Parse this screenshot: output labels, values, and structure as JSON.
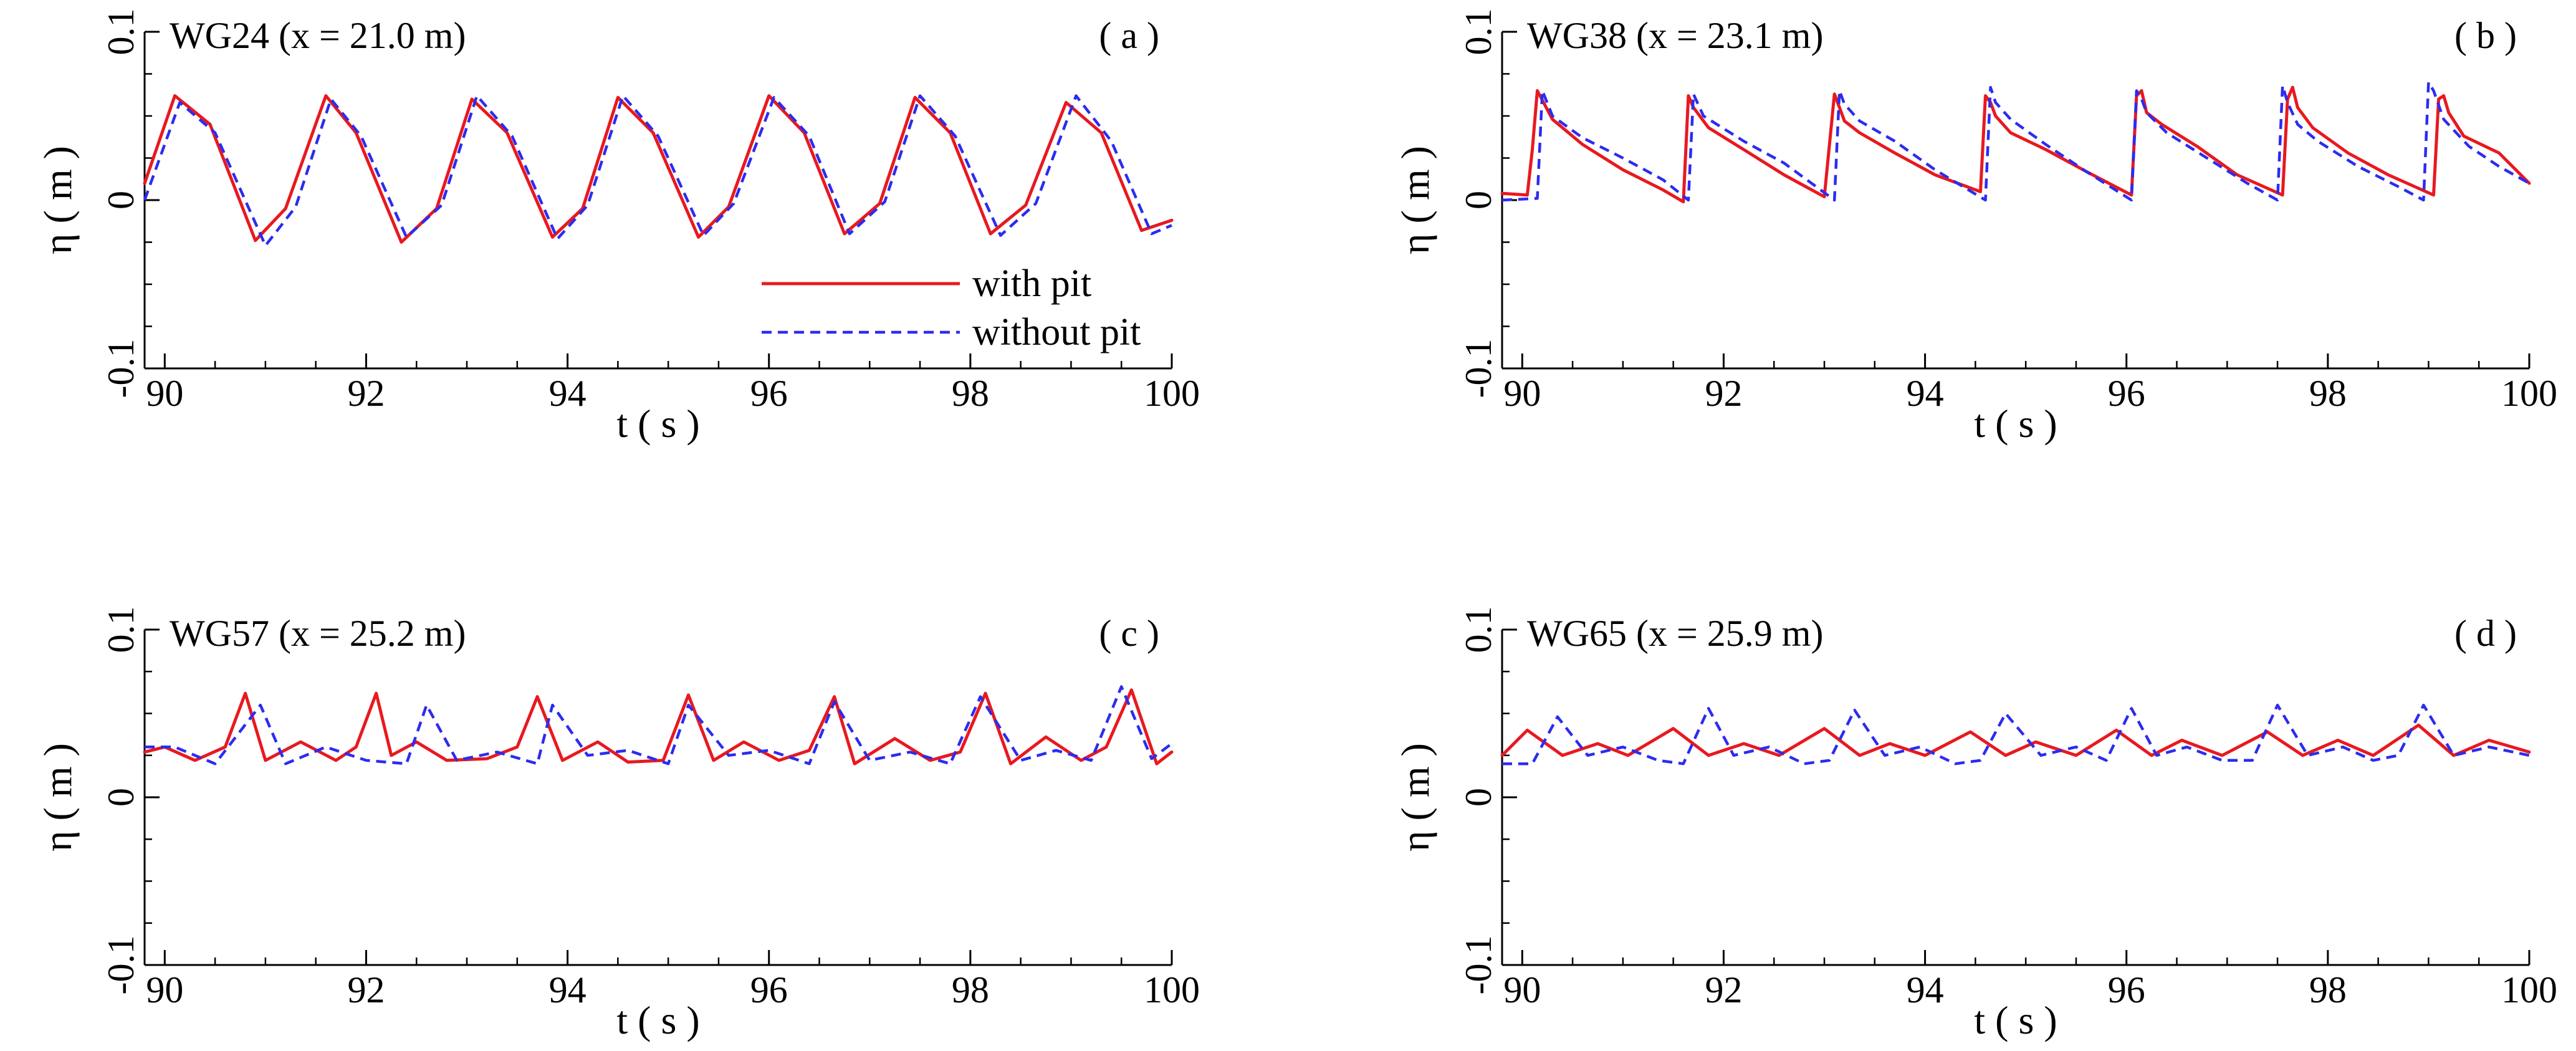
{
  "chart_data": [
    {
      "type": "line",
      "panel_label": "( a )",
      "title": "WG24 (x = 21.0 m)",
      "xlabel": "t ( s )",
      "ylabel": "η ( m )",
      "xlim": [
        89.8,
        100
      ],
      "ylim": [
        -0.1,
        0.1
      ],
      "xticks": [
        90,
        92,
        94,
        96,
        98,
        100
      ],
      "xtick_labels": [
        "90",
        "92",
        "94",
        "96",
        "98",
        "100"
      ],
      "yticks": [
        -0.1,
        0,
        0.1
      ],
      "ytick_labels": [
        "-0.1",
        "0",
        "0.1"
      ],
      "legend": {
        "entries": [
          "with pit",
          "without pit"
        ],
        "placement": "lower-right"
      },
      "series": [
        {
          "name": "with pit",
          "color": "#e8191f",
          "dash": "solid",
          "x": [
            89.8,
            90.1,
            90.45,
            90.9,
            91.2,
            91.6,
            91.9,
            92.35,
            92.7,
            93.05,
            93.4,
            93.85,
            94.15,
            94.5,
            94.85,
            95.3,
            95.6,
            96,
            96.35,
            96.75,
            97.1,
            97.45,
            97.8,
            98.2,
            98.55,
            98.95,
            99.3,
            99.7,
            100
          ],
          "y": [
            0.01,
            0.062,
            0.045,
            -0.024,
            -0.005,
            0.062,
            0.04,
            -0.025,
            -0.005,
            0.06,
            0.04,
            -0.022,
            -0.005,
            0.061,
            0.04,
            -0.022,
            -0.004,
            0.062,
            0.04,
            -0.02,
            -0.002,
            0.061,
            0.04,
            -0.02,
            -0.003,
            0.058,
            0.04,
            -0.018,
            -0.012
          ]
        },
        {
          "name": "without pit",
          "color": "#2c2cf0",
          "dash": "dashed",
          "x": [
            89.8,
            90.15,
            90.5,
            91,
            91.3,
            91.65,
            91.95,
            92.4,
            92.75,
            93.1,
            93.45,
            93.9,
            94.2,
            94.55,
            94.9,
            95.35,
            95.65,
            96.05,
            96.4,
            96.8,
            97.15,
            97.5,
            97.85,
            98.3,
            98.65,
            99.05,
            99.4,
            99.8,
            100
          ],
          "y": [
            0.0,
            0.058,
            0.04,
            -0.027,
            -0.004,
            0.06,
            0.038,
            -0.022,
            -0.003,
            0.062,
            0.038,
            -0.023,
            -0.003,
            0.062,
            0.038,
            -0.021,
            -0.002,
            0.061,
            0.038,
            -0.02,
            -0.001,
            0.062,
            0.038,
            -0.021,
            -0.002,
            0.062,
            0.035,
            -0.02,
            -0.015
          ]
        }
      ]
    },
    {
      "type": "line",
      "panel_label": "( b )",
      "title": "WG38 (x = 23.1 m)",
      "xlabel": "t ( s )",
      "ylabel": "η ( m )",
      "xlim": [
        89.8,
        100
      ],
      "ylim": [
        -0.1,
        0.1
      ],
      "xticks": [
        90,
        92,
        94,
        96,
        98,
        100
      ],
      "xtick_labels": [
        "90",
        "92",
        "94",
        "96",
        "98",
        "100"
      ],
      "yticks": [
        -0.1,
        0,
        0.1
      ],
      "ytick_labels": [
        "-0.1",
        "0",
        "0.1"
      ],
      "series": [
        {
          "name": "with pit",
          "color": "#e8191f",
          "dash": "solid",
          "x": [
            89.8,
            90.05,
            90.1,
            90.15,
            90.3,
            90.6,
            91,
            91.4,
            91.6,
            91.65,
            91.7,
            91.85,
            92.2,
            92.6,
            93,
            93.1,
            93.15,
            93.2,
            93.35,
            93.7,
            94.1,
            94.55,
            94.6,
            94.65,
            94.7,
            94.85,
            95.2,
            95.6,
            96.05,
            96.1,
            96.15,
            96.2,
            96.35,
            96.7,
            97.1,
            97.55,
            97.6,
            97.65,
            97.7,
            97.85,
            98.2,
            98.6,
            99.05,
            99.1,
            99.15,
            99.2,
            99.35,
            99.7,
            100
          ],
          "y": [
            0.004,
            0.003,
            0.03,
            0.065,
            0.048,
            0.033,
            0.018,
            0.006,
            -0.001,
            0.062,
            0.055,
            0.043,
            0.03,
            0.015,
            0.002,
            0.063,
            0.055,
            0.047,
            0.04,
            0.028,
            0.015,
            0.005,
            0.062,
            0.058,
            0.05,
            0.04,
            0.03,
            0.017,
            0.003,
            0.062,
            0.065,
            0.052,
            0.045,
            0.032,
            0.015,
            0.003,
            0.06,
            0.067,
            0.055,
            0.043,
            0.028,
            0.015,
            0.003,
            0.06,
            0.062,
            0.052,
            0.038,
            0.028,
            0.01
          ]
        },
        {
          "name": "without pit",
          "color": "#2c2cf0",
          "dash": "dashed",
          "x": [
            89.8,
            90.15,
            90.2,
            90.3,
            90.6,
            91,
            91.4,
            91.65,
            91.7,
            91.8,
            92.2,
            92.6,
            93.1,
            93.15,
            93.2,
            93.35,
            93.7,
            94.1,
            94.6,
            94.65,
            94.7,
            94.85,
            95.2,
            95.6,
            96.05,
            96.1,
            96.15,
            96.2,
            96.4,
            96.8,
            97.2,
            97.5,
            97.55,
            97.6,
            97.7,
            97.9,
            98.3,
            98.7,
            98.95,
            99,
            99.05,
            99.15,
            99.4,
            99.7,
            100
          ],
          "y": [
            0.0,
            0.001,
            0.065,
            0.05,
            0.037,
            0.025,
            0.012,
            0.0,
            0.063,
            0.05,
            0.035,
            0.022,
            0.0,
            0.065,
            0.057,
            0.047,
            0.035,
            0.018,
            0.0,
            0.067,
            0.058,
            0.048,
            0.033,
            0.017,
            0.0,
            0.065,
            0.06,
            0.052,
            0.04,
            0.025,
            0.01,
            0.0,
            0.068,
            0.058,
            0.045,
            0.035,
            0.02,
            0.008,
            0.0,
            0.07,
            0.065,
            0.048,
            0.032,
            0.02,
            0.01
          ]
        }
      ]
    },
    {
      "type": "line",
      "panel_label": "( c )",
      "title": "WG57 (x = 25.2 m)",
      "xlabel": "t ( s )",
      "ylabel": "η ( m )",
      "xlim": [
        89.8,
        100
      ],
      "ylim": [
        -0.1,
        0.1
      ],
      "xticks": [
        90,
        92,
        94,
        96,
        98,
        100
      ],
      "xtick_labels": [
        "90",
        "92",
        "94",
        "96",
        "98",
        "100"
      ],
      "yticks": [
        -0.1,
        0,
        0.1
      ],
      "ytick_labels": [
        "-0.1",
        "0",
        "0.1"
      ],
      "series": [
        {
          "name": "with pit",
          "color": "#e8191f",
          "dash": "solid",
          "x": [
            89.8,
            90,
            90.3,
            90.6,
            90.8,
            91,
            91.35,
            91.7,
            91.9,
            92.1,
            92.25,
            92.5,
            92.8,
            93.2,
            93.5,
            93.7,
            93.95,
            94.3,
            94.6,
            94.95,
            95.2,
            95.45,
            95.75,
            96.1,
            96.4,
            96.65,
            96.85,
            97.25,
            97.6,
            97.9,
            98.15,
            98.4,
            98.75,
            99.1,
            99.35,
            99.6,
            99.85,
            100
          ],
          "y": [
            0.027,
            0.03,
            0.022,
            0.03,
            0.062,
            0.022,
            0.033,
            0.022,
            0.03,
            0.062,
            0.025,
            0.033,
            0.022,
            0.023,
            0.03,
            0.06,
            0.022,
            0.033,
            0.021,
            0.022,
            0.061,
            0.022,
            0.033,
            0.022,
            0.028,
            0.06,
            0.02,
            0.035,
            0.022,
            0.027,
            0.062,
            0.02,
            0.036,
            0.022,
            0.03,
            0.064,
            0.02,
            0.027
          ]
        },
        {
          "name": "without pit",
          "color": "#2c2cf0",
          "dash": "dashed",
          "x": [
            89.8,
            90.1,
            90.5,
            90.95,
            91.2,
            91.6,
            92,
            92.4,
            92.6,
            92.9,
            93.3,
            93.7,
            93.85,
            94.2,
            94.6,
            95,
            95.2,
            95.6,
            96,
            96.4,
            96.65,
            97,
            97.4,
            97.8,
            98.1,
            98.5,
            98.85,
            99.2,
            99.5,
            99.8,
            100
          ],
          "y": [
            0.03,
            0.03,
            0.02,
            0.055,
            0.02,
            0.03,
            0.022,
            0.02,
            0.055,
            0.022,
            0.027,
            0.02,
            0.055,
            0.025,
            0.028,
            0.02,
            0.055,
            0.025,
            0.028,
            0.02,
            0.057,
            0.022,
            0.027,
            0.02,
            0.06,
            0.022,
            0.028,
            0.022,
            0.066,
            0.023,
            0.032
          ]
        }
      ]
    },
    {
      "type": "line",
      "panel_label": "( d )",
      "title": "WG65 (x = 25.9 m)",
      "xlabel": "t ( s )",
      "ylabel": "η ( m )",
      "xlim": [
        89.8,
        100
      ],
      "ylim": [
        -0.1,
        0.1
      ],
      "xticks": [
        90,
        92,
        94,
        96,
        98,
        100
      ],
      "xtick_labels": [
        "90",
        "92",
        "94",
        "96",
        "98",
        "100"
      ],
      "yticks": [
        -0.1,
        0,
        0.1
      ],
      "ytick_labels": [
        "-0.1",
        "0",
        "0.1"
      ],
      "series": [
        {
          "name": "with pit",
          "color": "#e8191f",
          "dash": "solid",
          "x": [
            89.8,
            90.05,
            90.4,
            90.75,
            91.05,
            91.5,
            91.85,
            92.2,
            92.55,
            93,
            93.35,
            93.65,
            94,
            94.45,
            94.8,
            95.1,
            95.5,
            95.9,
            96.25,
            96.55,
            96.95,
            97.4,
            97.75,
            98.1,
            98.45,
            98.9,
            99.25,
            99.6,
            100
          ],
          "y": [
            0.025,
            0.04,
            0.025,
            0.032,
            0.025,
            0.041,
            0.025,
            0.032,
            0.025,
            0.041,
            0.025,
            0.032,
            0.025,
            0.039,
            0.025,
            0.033,
            0.025,
            0.04,
            0.025,
            0.034,
            0.025,
            0.039,
            0.025,
            0.034,
            0.025,
            0.043,
            0.025,
            0.034,
            0.027
          ]
        },
        {
          "name": "without pit",
          "color": "#2c2cf0",
          "dash": "dashed",
          "x": [
            89.8,
            90.1,
            90.35,
            90.65,
            91,
            91.35,
            91.6,
            91.85,
            92.1,
            92.45,
            92.8,
            93.05,
            93.3,
            93.6,
            93.95,
            94.3,
            94.55,
            94.8,
            95.15,
            95.5,
            95.8,
            96.05,
            96.3,
            96.6,
            96.95,
            97.25,
            97.5,
            97.8,
            98.15,
            98.45,
            98.7,
            98.95,
            99.25,
            99.6,
            100
          ],
          "y": [
            0.02,
            0.02,
            0.048,
            0.025,
            0.03,
            0.022,
            0.02,
            0.053,
            0.025,
            0.03,
            0.02,
            0.022,
            0.052,
            0.025,
            0.03,
            0.02,
            0.022,
            0.05,
            0.025,
            0.03,
            0.022,
            0.053,
            0.025,
            0.03,
            0.022,
            0.022,
            0.055,
            0.025,
            0.03,
            0.022,
            0.025,
            0.055,
            0.025,
            0.03,
            0.025
          ]
        }
      ]
    }
  ]
}
